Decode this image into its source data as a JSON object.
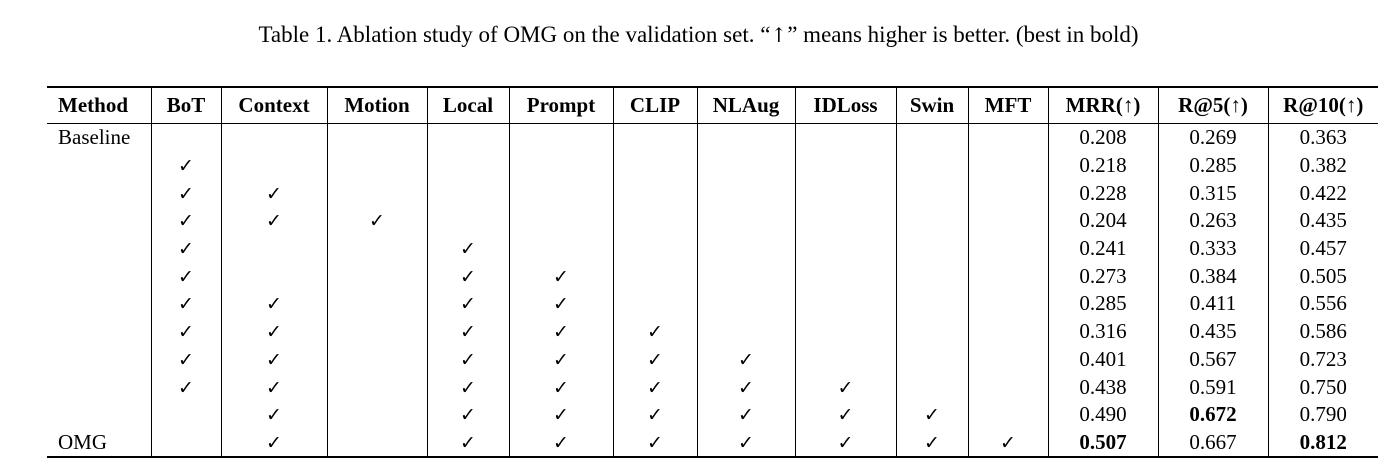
{
  "caption": {
    "text_before_arrow": "Table 1. Ablation study of OMG on the validation set. “",
    "arrow": "↑",
    "text_after_arrow": "” means higher is better. (best in bold)"
  },
  "table": {
    "headers": [
      "Method",
      "BoT",
      "Context",
      "Motion",
      "Local",
      "Prompt",
      "CLIP",
      "NLAug",
      "IDLoss",
      "Swin",
      "MFT",
      "MRR(↑)",
      "R@5(↑)",
      "R@10(↑)"
    ],
    "check_symbol": "✓",
    "rows": [
      {
        "method": "Baseline",
        "checks": [
          false,
          false,
          false,
          false,
          false,
          false,
          false,
          false,
          false,
          false
        ],
        "mrr": "0.208",
        "r5": "0.269",
        "r10": "0.363",
        "best": []
      },
      {
        "method": "",
        "checks": [
          true,
          false,
          false,
          false,
          false,
          false,
          false,
          false,
          false,
          false
        ],
        "mrr": "0.218",
        "r5": "0.285",
        "r10": "0.382",
        "best": []
      },
      {
        "method": "",
        "checks": [
          true,
          true,
          false,
          false,
          false,
          false,
          false,
          false,
          false,
          false
        ],
        "mrr": "0.228",
        "r5": "0.315",
        "r10": "0.422",
        "best": []
      },
      {
        "method": "",
        "checks": [
          true,
          true,
          true,
          false,
          false,
          false,
          false,
          false,
          false,
          false
        ],
        "mrr": "0.204",
        "r5": "0.263",
        "r10": "0.435",
        "best": []
      },
      {
        "method": "",
        "checks": [
          true,
          false,
          false,
          true,
          false,
          false,
          false,
          false,
          false,
          false
        ],
        "mrr": "0.241",
        "r5": "0.333",
        "r10": "0.457",
        "best": []
      },
      {
        "method": "",
        "checks": [
          true,
          false,
          false,
          true,
          true,
          false,
          false,
          false,
          false,
          false
        ],
        "mrr": "0.273",
        "r5": "0.384",
        "r10": "0.505",
        "best": []
      },
      {
        "method": "",
        "checks": [
          true,
          true,
          false,
          true,
          true,
          false,
          false,
          false,
          false,
          false
        ],
        "mrr": "0.285",
        "r5": "0.411",
        "r10": "0.556",
        "best": []
      },
      {
        "method": "",
        "checks": [
          true,
          true,
          false,
          true,
          true,
          true,
          false,
          false,
          false,
          false
        ],
        "mrr": "0.316",
        "r5": "0.435",
        "r10": "0.586",
        "best": []
      },
      {
        "method": "",
        "checks": [
          true,
          true,
          false,
          true,
          true,
          true,
          true,
          false,
          false,
          false
        ],
        "mrr": "0.401",
        "r5": "0.567",
        "r10": "0.723",
        "best": []
      },
      {
        "method": "",
        "checks": [
          true,
          true,
          false,
          true,
          true,
          true,
          true,
          true,
          false,
          false
        ],
        "mrr": "0.438",
        "r5": "0.591",
        "r10": "0.750",
        "best": []
      },
      {
        "method": "",
        "checks": [
          false,
          true,
          false,
          true,
          true,
          true,
          true,
          true,
          true,
          false
        ],
        "mrr": "0.490",
        "r5": "0.672",
        "r10": "0.790",
        "best": [
          "r5"
        ]
      },
      {
        "method": "OMG",
        "checks": [
          false,
          true,
          false,
          true,
          true,
          true,
          true,
          true,
          true,
          true
        ],
        "mrr": "0.507",
        "r5": "0.667",
        "r10": "0.812",
        "best": [
          "mrr",
          "r10"
        ]
      }
    ]
  }
}
